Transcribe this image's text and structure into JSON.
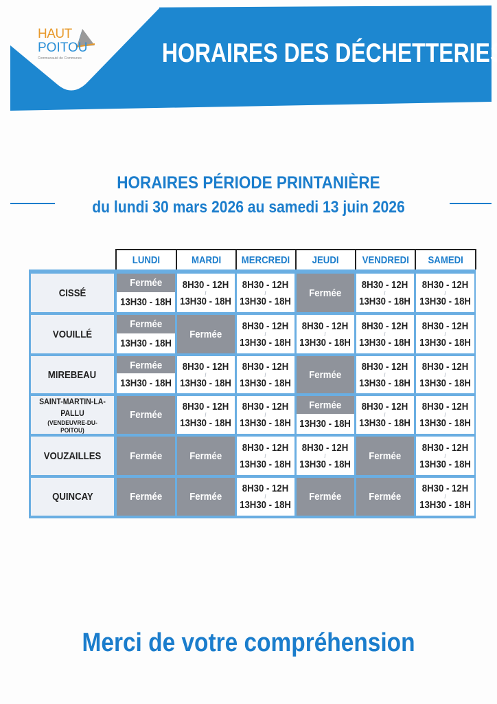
{
  "header": {
    "title": "HORAIRES DES DÉCHETTERIES",
    "logo": {
      "line1": "HAUT",
      "line2": "POITOU",
      "tagline": "Communauté de Communes"
    }
  },
  "period": {
    "title": "HORAIRES PÉRIODE PRINTANIÈRE",
    "dates": "du lundi 30 mars 2026 au samedi 13 juin 2026"
  },
  "colors": {
    "brand_blue": "#1d87d0",
    "closed_grey": "#8f939b",
    "orange": "#e89a2c"
  },
  "labels": {
    "closed": "Fermée",
    "morning": "8H30 - 12H",
    "afternoon": "13H30 - 18H"
  },
  "days": [
    "LUNDI",
    "MARDI",
    "MERCREDI",
    "JEUDI",
    "VENDREDI",
    "SAMEDI"
  ],
  "sites": [
    {
      "name": "CISSÉ",
      "schedule": [
        "Fermée / 13H30 - 18H",
        "8H30 - 12H / 13H30 - 18H",
        "8H30 - 12H / 13H30 - 18H",
        "Fermée",
        "8H30 - 12H / 13H30 - 18H",
        "8H30 - 12H / 13H30 - 18H"
      ]
    },
    {
      "name": "VOUILLÉ",
      "schedule": [
        "Fermée / 13H30 - 18H",
        "Fermée",
        "8H30 - 12H / 13H30 - 18H",
        "8H30 - 12H / 13H30 - 18H",
        "8H30 - 12H / 13H30 - 18H",
        "8H30 - 12H / 13H30 - 18H"
      ]
    },
    {
      "name": "MIREBEAU",
      "schedule": [
        "Fermée / 13H30 - 18H",
        "8H30 - 12H / 13H30 - 18H",
        "8H30 - 12H / 13H30 - 18H",
        "Fermée",
        "8H30 - 12H / 13H30 - 18H",
        "8H30 - 12H / 13H30 - 18H"
      ]
    },
    {
      "name": "SAINT-MARTIN-LA-PALLU",
      "sub": "(VENDEUVRE-DU-POITOU)",
      "schedule": [
        "Fermée",
        "8H30 - 12H / 13H30 - 18H",
        "8H30 - 12H / 13H30 - 18H",
        "Fermée / 13H30 - 18H",
        "8H30 - 12H / 13H30 - 18H",
        "8H30 - 12H / 13H30 - 18H"
      ]
    },
    {
      "name": "VOUZAILLES",
      "schedule": [
        "Fermée",
        "Fermée",
        "8H30 - 12H / 13H30 - 18H",
        "8H30 - 12H / 13H30 - 18H",
        "Fermée",
        "8H30 - 12H / 13H30 - 18H"
      ]
    },
    {
      "name": "QUINCAY",
      "schedule": [
        "Fermée",
        "Fermée",
        "8H30 - 12H / 13H30 - 18H",
        "Fermée",
        "Fermée",
        "8H30 - 12H / 13H30 - 18H"
      ]
    }
  ],
  "footer": {
    "thanks": "Merci de votre compréhension"
  }
}
